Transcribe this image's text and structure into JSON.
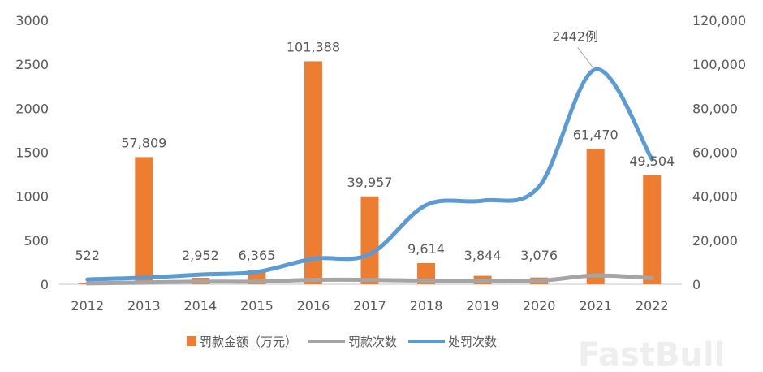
{
  "chart_data": {
    "type": "bar+line",
    "categories": [
      "2012",
      "2013",
      "2014",
      "2015",
      "2016",
      "2017",
      "2018",
      "2019",
      "2020",
      "2021",
      "2022"
    ],
    "left_axis": {
      "range": [
        0,
        3000
      ],
      "ticks": [
        "0",
        "500",
        "1000",
        "1500",
        "2000",
        "2500",
        "3000"
      ]
    },
    "right_axis": {
      "range": [
        0,
        120000
      ],
      "ticks": [
        "0",
        "20,000",
        "40,000",
        "60,000",
        "80,000",
        "100,000",
        "120,000"
      ]
    },
    "grid": false,
    "legend_placement": "bottom",
    "series": [
      {
        "name": "罚款金额（万元）",
        "kind": "bar",
        "axis": "right",
        "color": "#ED7D31",
        "values": [
          522,
          57809,
          2952,
          6365,
          101388,
          39957,
          9614,
          3844,
          3076,
          61470,
          49504
        ],
        "labels": [
          "522",
          "57,809",
          "2,952",
          "6,365",
          "101,388",
          "39,957",
          "9,614",
          "3,844",
          "3,076",
          "61,470",
          "49,504"
        ]
      },
      {
        "name": "罚款次数",
        "kind": "line",
        "axis": "left",
        "color": "#A5A5A5",
        "values": [
          10,
          20,
          30,
          30,
          50,
          50,
          40,
          40,
          40,
          100,
          70
        ]
      },
      {
        "name": "处罚次数",
        "kind": "line",
        "axis": "left",
        "color": "#5B9BD5",
        "values": [
          55,
          75,
          110,
          140,
          290,
          340,
          900,
          950,
          1110,
          2442,
          1420
        ]
      }
    ],
    "annotations": [
      {
        "category": "2021",
        "series": "处罚次数",
        "text": "2442例"
      }
    ]
  },
  "watermark": "FastBull"
}
